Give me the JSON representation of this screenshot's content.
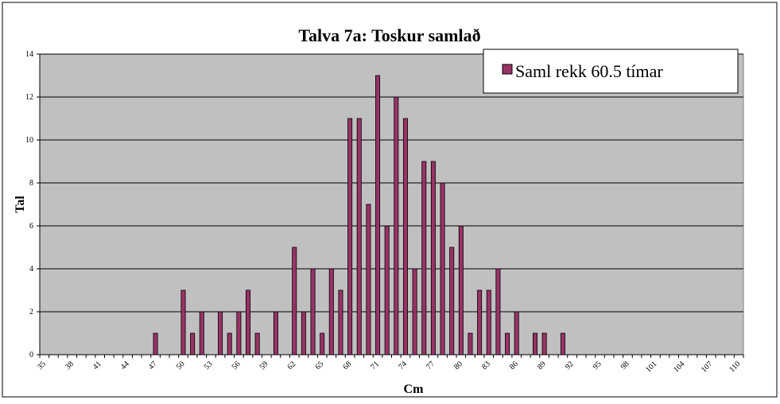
{
  "chart_data": {
    "type": "bar",
    "title": "Talva 7a: Toskur samlað",
    "x_label": "Cm",
    "y_label": "Tal",
    "categories": [
      "35",
      null,
      null,
      "38",
      null,
      null,
      "41",
      null,
      null,
      "44",
      null,
      null,
      "47",
      null,
      null,
      "50",
      null,
      null,
      "53",
      null,
      null,
      "56",
      null,
      null,
      "59",
      null,
      null,
      "62",
      null,
      null,
      "65",
      null,
      null,
      "68",
      null,
      null,
      "71",
      null,
      null,
      "74",
      null,
      null,
      "77",
      null,
      null,
      "80",
      null,
      null,
      "83",
      null,
      null,
      "86",
      null,
      null,
      "89",
      null,
      null,
      "92",
      null,
      null,
      "95",
      null,
      null,
      "98",
      null,
      null,
      "101",
      null,
      null,
      "104",
      null,
      null,
      "107",
      null,
      null,
      "110"
    ],
    "series": [
      {
        "name": "Saml rekk 60.5 tímar",
        "color": "#993366",
        "values": [
          0,
          0,
          0,
          0,
          0,
          0,
          0,
          0,
          0,
          0,
          0,
          0,
          1,
          0,
          0,
          3,
          1,
          2,
          0,
          2,
          1,
          2,
          3,
          1,
          0,
          2,
          0,
          5,
          2,
          4,
          1,
          4,
          3,
          11,
          11,
          7,
          13,
          6,
          12,
          11,
          4,
          9,
          9,
          8,
          5,
          6,
          1,
          3,
          3,
          4,
          1,
          2,
          0,
          1,
          1,
          0,
          1,
          0,
          0,
          0,
          0,
          0,
          0,
          0,
          0,
          0,
          0,
          0,
          0,
          0,
          0,
          0,
          0,
          0,
          0,
          0
        ]
      }
    ],
    "ylim": [
      0,
      14
    ],
    "yticks": [
      0,
      2,
      4,
      6,
      8,
      10,
      12,
      14
    ],
    "grid": true,
    "legend": "upper right"
  }
}
